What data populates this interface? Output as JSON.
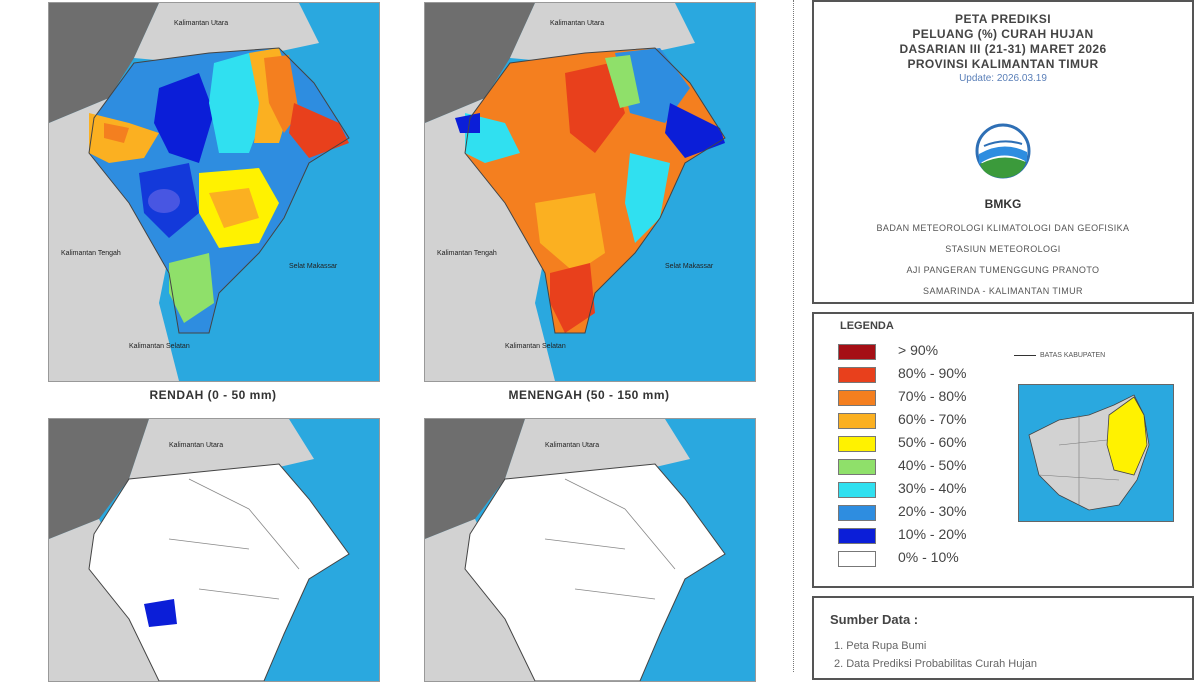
{
  "maps": [
    {
      "caption": "RENDAH (0 - 50 mm)"
    },
    {
      "caption": "MENENGAH (50 - 150 mm)"
    },
    {
      "caption": ""
    },
    {
      "caption": ""
    }
  ],
  "map_labels": {
    "north": "Kalimantan Utara",
    "west": "Kalimantan Tengah",
    "south": "Kalimantan Selatan",
    "sea": "Selat Makassar"
  },
  "header": {
    "title_lines": [
      "PETA PREDIKSI",
      "PELUANG (%) CURAH HUJAN",
      "DASARIAN III (21-31) MARET 2026",
      "PROVINSI KALIMANTAN TIMUR"
    ],
    "update": "Update: 2026.03.19",
    "logo_text": "BMKG",
    "org_lines": [
      "BADAN METEOROLOGI KLIMATOLOGI DAN GEOFISIKA",
      "STASIUN METEOROLOGI",
      "AJI PANGERAN TUMENGGUNG PRANOTO",
      "SAMARINDA - KALIMANTAN TIMUR"
    ]
  },
  "legend": {
    "title": "LEGENDA",
    "boundary_label": "BATAS KABUPATEN",
    "items": [
      {
        "label": "> 90%",
        "color": "#a50f15"
      },
      {
        "label": "80% - 90%",
        "color": "#e8401c"
      },
      {
        "label": "70% - 80%",
        "color": "#f47f1f"
      },
      {
        "label": "60% - 70%",
        "color": "#fbb021"
      },
      {
        "label": "50% - 60%",
        "color": "#fff200"
      },
      {
        "label": "40% - 50%",
        "color": "#8fe06a"
      },
      {
        "label": "30% - 40%",
        "color": "#30e0f0"
      },
      {
        "label": "20% - 30%",
        "color": "#2e8de0"
      },
      {
        "label": "10% - 20%",
        "color": "#0b1ed8"
      },
      {
        "label": "0% - 10%",
        "color": "#ffffff"
      }
    ]
  },
  "sources": {
    "title": "Sumber Data :",
    "items": [
      "1. Peta Rupa Bumi",
      "2. Data Prediksi Probabilitas Curah Hujan"
    ]
  },
  "colors": {
    "sea": "#2aa8df",
    "neighbor_land": "#d2d2d2",
    "dark_land": "#6e6e6e",
    "boundary": "#444444"
  }
}
